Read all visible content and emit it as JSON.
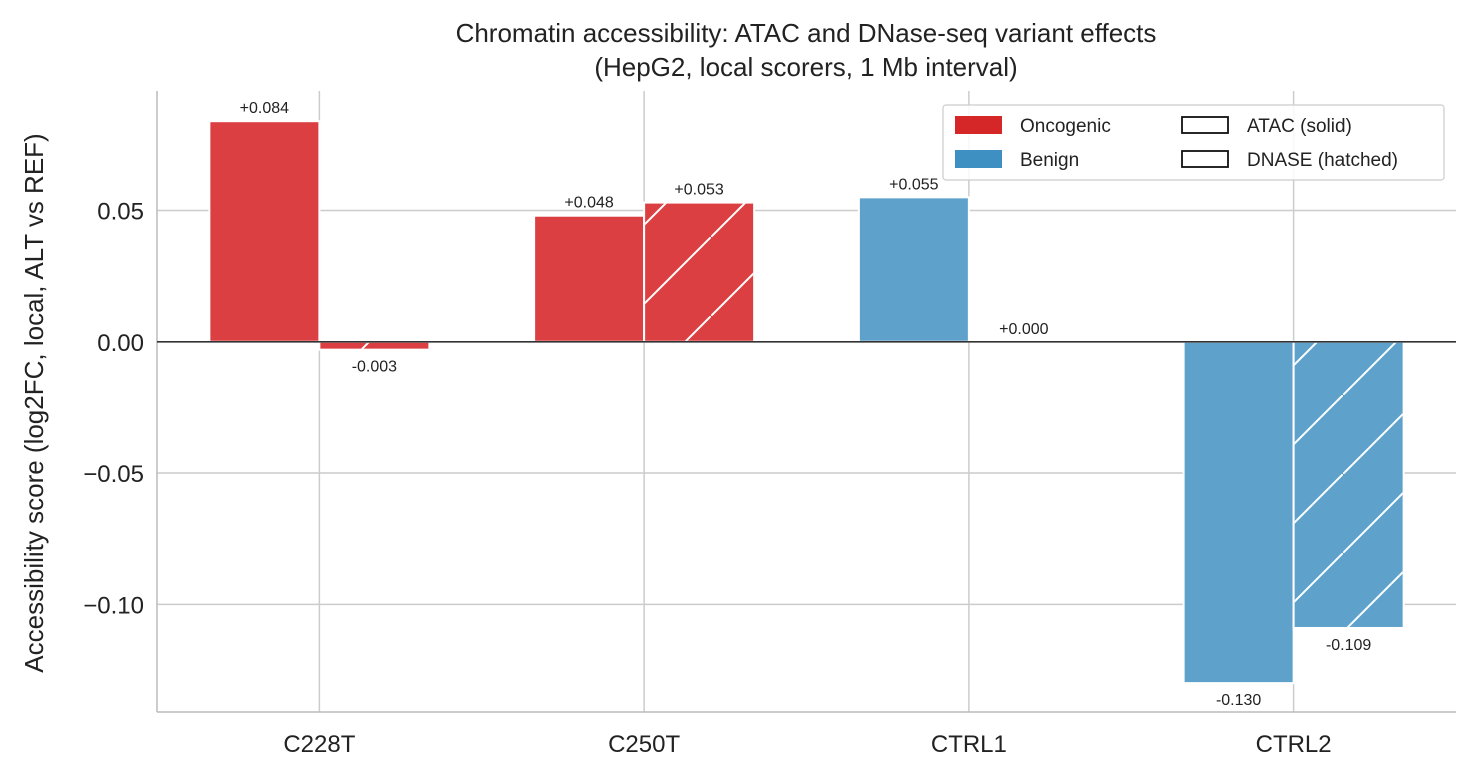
{
  "chart_data": {
    "type": "bar",
    "title": "Chromatin accessibility: ATAC and DNase-seq variant effects",
    "subtitle": "(HepG2, local scorers, 1 Mb interval)",
    "ylabel": "Accessibility score (log2FC, local, ALT vs REF)",
    "xlabel": "",
    "categories": [
      "C228T",
      "C250T",
      "CTRL1",
      "CTRL2"
    ],
    "category_classes": [
      "Oncogenic",
      "Oncogenic",
      "Benign",
      "Benign"
    ],
    "series": [
      {
        "name": "ATAC (solid)",
        "pattern": "solid",
        "values": [
          0.084,
          0.048,
          0.055,
          -0.13
        ],
        "labels": [
          "+0.084",
          "+0.048",
          "+0.055",
          "-0.130"
        ]
      },
      {
        "name": "DNASE (hatched)",
        "pattern": "hatched",
        "values": [
          -0.003,
          0.053,
          0.0,
          -0.109
        ],
        "labels": [
          "-0.003",
          "+0.053",
          "+0.000",
          "-0.109"
        ]
      }
    ],
    "ylim": [
      -0.141,
      0.0955
    ],
    "yticks": [
      0.05,
      0.0,
      -0.05,
      -0.1
    ],
    "ytick_labels": [
      "0.05",
      "0.00",
      "−0.05",
      "−0.10"
    ],
    "grid": true,
    "legend_position": "top-right",
    "legend": {
      "color_entries": [
        {
          "label": "Oncogenic",
          "color": "#d62728"
        },
        {
          "label": "Benign",
          "color": "#3e90c2"
        }
      ],
      "pattern_entries": [
        {
          "label": "ATAC (solid)"
        },
        {
          "label": "DNASE (hatched)"
        }
      ]
    },
    "colors": {
      "Oncogenic": "#d62728",
      "Benign": "#3e90c2",
      "Oncogenic_fill": "#db3f41",
      "Benign_fill": "#5ea2cc"
    }
  }
}
